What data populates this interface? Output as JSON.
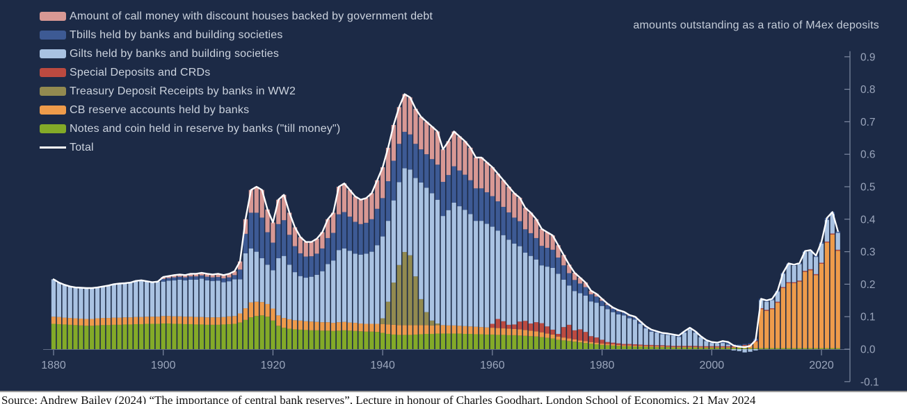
{
  "figure": {
    "annotation": "amounts outstanding as a ratio of M4ex deposits",
    "caption": "Source: Andrew Bailey (2024) “The importance of central bank reserves”, Lecture in honour of Charles Goodhart, London School of Economics, 21 May 2024",
    "colors": {
      "background": "#1c2a46",
      "legend_text": "#ccd3de",
      "annotation_text": "#c4ccd8",
      "axis_line": "#7e8aa2",
      "tick_text": "#9aa5bb",
      "total_line": "#ffffff"
    }
  },
  "chart_data": {
    "type": "bar",
    "stacked": true,
    "title": "",
    "xlabel": "",
    "ylabel": "",
    "grid": false,
    "legend_position": "top-left",
    "x_start_year": 1880,
    "x_end_year": 2023,
    "x_ticks": [
      1880,
      1900,
      1920,
      1940,
      1960,
      1980,
      2000,
      2020
    ],
    "y_ticks": [
      0.9,
      0.8,
      0.7,
      0.6,
      0.5,
      0.4,
      0.3,
      0.2,
      0.1,
      0.0,
      -0.1
    ],
    "ylim": [
      -0.1,
      0.9
    ],
    "total_line": {
      "name": "Total",
      "color": "#ffffff"
    },
    "legend_order_top_to_bottom": [
      6,
      5,
      4,
      3,
      2,
      1,
      0
    ],
    "series": [
      {
        "name": "Notes and coin held in reserve by banks (\"till money\")",
        "color": "#83aa28",
        "values": [
          0.078,
          0.077,
          0.076,
          0.075,
          0.074,
          0.073,
          0.072,
          0.072,
          0.073,
          0.074,
          0.074,
          0.075,
          0.075,
          0.076,
          0.076,
          0.077,
          0.077,
          0.078,
          0.078,
          0.078,
          0.079,
          0.079,
          0.078,
          0.078,
          0.077,
          0.077,
          0.076,
          0.076,
          0.075,
          0.075,
          0.075,
          0.076,
          0.077,
          0.078,
          0.082,
          0.09,
          0.098,
          0.102,
          0.104,
          0.1,
          0.088,
          0.072,
          0.066,
          0.063,
          0.061,
          0.06,
          0.059,
          0.058,
          0.058,
          0.057,
          0.057,
          0.056,
          0.057,
          0.058,
          0.057,
          0.056,
          0.055,
          0.054,
          0.054,
          0.053,
          0.05,
          0.047,
          0.045,
          0.044,
          0.044,
          0.044,
          0.045,
          0.046,
          0.047,
          0.047,
          0.048,
          0.048,
          0.048,
          0.048,
          0.048,
          0.047,
          0.047,
          0.046,
          0.046,
          0.045,
          0.045,
          0.044,
          0.044,
          0.043,
          0.043,
          0.042,
          0.041,
          0.04,
          0.039,
          0.037,
          0.035,
          0.033,
          0.029,
          0.027,
          0.025,
          0.023,
          0.021,
          0.019,
          0.017,
          0.015,
          0.013,
          0.012,
          0.011,
          0.01,
          0.009,
          0.009,
          0.008,
          0.008,
          0.007,
          0.007,
          0.006,
          0.006,
          0.006,
          0.005,
          0.005,
          0.005,
          0.005,
          0.005,
          0.004,
          0.004,
          0.004,
          0.004,
          0.004,
          0.004,
          0.004,
          0.004,
          0.003,
          0.003,
          0.003,
          0.003,
          0.003,
          0.003,
          0.003,
          0.003,
          0.003,
          0.003,
          0.003,
          0.003,
          0.003,
          0.003,
          0.003,
          0.003,
          0.003,
          0.003
        ]
      },
      {
        "name": "CB reserve accounts held by banks",
        "color": "#ee9b4b",
        "values": [
          0.022,
          0.022,
          0.021,
          0.021,
          0.021,
          0.021,
          0.021,
          0.021,
          0.022,
          0.022,
          0.022,
          0.022,
          0.022,
          0.022,
          0.022,
          0.022,
          0.022,
          0.022,
          0.022,
          0.022,
          0.023,
          0.023,
          0.023,
          0.023,
          0.023,
          0.023,
          0.023,
          0.023,
          0.023,
          0.023,
          0.023,
          0.023,
          0.024,
          0.024,
          0.028,
          0.036,
          0.046,
          0.044,
          0.041,
          0.039,
          0.037,
          0.032,
          0.03,
          0.029,
          0.028,
          0.028,
          0.027,
          0.027,
          0.026,
          0.026,
          0.026,
          0.025,
          0.026,
          0.026,
          0.025,
          0.025,
          0.024,
          0.024,
          0.024,
          0.025,
          0.027,
          0.029,
          0.03,
          0.03,
          0.03,
          0.03,
          0.029,
          0.028,
          0.027,
          0.026,
          0.026,
          0.026,
          0.025,
          0.025,
          0.024,
          0.024,
          0.023,
          0.023,
          0.022,
          0.022,
          0.021,
          0.021,
          0.02,
          0.02,
          0.019,
          0.019,
          0.018,
          0.017,
          0.016,
          0.015,
          0.013,
          0.012,
          0.01,
          0.009,
          0.008,
          0.007,
          0.006,
          0.006,
          0.005,
          0.005,
          0.004,
          0.004,
          0.004,
          0.003,
          0.003,
          0.003,
          0.003,
          0.003,
          0.003,
          0.003,
          0.003,
          0.003,
          0.002,
          0.002,
          0.002,
          0.002,
          0.002,
          0.002,
          0.002,
          0.002,
          0.002,
          0.002,
          0.002,
          0.002,
          0.002,
          0.002,
          0.007,
          0.009,
          0.02,
          0.12,
          0.115,
          0.12,
          0.14,
          0.185,
          0.2,
          0.2,
          0.205,
          0.235,
          0.24,
          0.225,
          0.26,
          0.325,
          0.35,
          0.3
        ]
      },
      {
        "name": "Treasury Deposit Receipts by banks in WW2",
        "color": "#928a50",
        "values": [
          0,
          0,
          0,
          0,
          0,
          0,
          0,
          0,
          0,
          0,
          0,
          0,
          0,
          0,
          0,
          0,
          0,
          0,
          0,
          0,
          0,
          0,
          0,
          0,
          0,
          0,
          0,
          0,
          0,
          0,
          0,
          0,
          0,
          0,
          0,
          0,
          0,
          0,
          0,
          0,
          0,
          0,
          0,
          0,
          0,
          0,
          0,
          0,
          0,
          0,
          0,
          0,
          0,
          0,
          0,
          0,
          0,
          0,
          0,
          0,
          0.018,
          0.07,
          0.13,
          0.185,
          0.225,
          0.215,
          0.15,
          0.08,
          0.04,
          0.015,
          0.005,
          0,
          0,
          0,
          0,
          0,
          0,
          0,
          0,
          0,
          0,
          0,
          0,
          0,
          0,
          0,
          0,
          0,
          0,
          0,
          0,
          0,
          0,
          0,
          0,
          0,
          0,
          0,
          0,
          0,
          0,
          0,
          0,
          0,
          0,
          0,
          0,
          0,
          0,
          0,
          0,
          0,
          0,
          0,
          0,
          0,
          0,
          0,
          0,
          0,
          0,
          0,
          0,
          0,
          0,
          0,
          0,
          0,
          0,
          0,
          0,
          0,
          0,
          0,
          0,
          0,
          0,
          0,
          0,
          0,
          0,
          0,
          0,
          0
        ]
      },
      {
        "name": "Special Deposits and CRDs",
        "color": "#bc4a40",
        "values": [
          0,
          0,
          0,
          0,
          0,
          0,
          0,
          0,
          0,
          0,
          0,
          0,
          0,
          0,
          0,
          0,
          0,
          0,
          0,
          0,
          0,
          0,
          0,
          0,
          0,
          0,
          0,
          0,
          0,
          0,
          0,
          0,
          0,
          0,
          0,
          0,
          0,
          0,
          0,
          0,
          0,
          0,
          0,
          0,
          0,
          0,
          0,
          0,
          0,
          0,
          0,
          0,
          0,
          0,
          0,
          0,
          0,
          0,
          0,
          0,
          0,
          0,
          0,
          0,
          0,
          0,
          0,
          0,
          0,
          0,
          0,
          0,
          0,
          0,
          0,
          0,
          0,
          0,
          0,
          0,
          0.012,
          0.028,
          0.022,
          0.012,
          0.014,
          0.024,
          0.028,
          0.022,
          0.028,
          0.028,
          0.022,
          0.015,
          0.008,
          0.032,
          0.042,
          0.028,
          0.034,
          0.028,
          0.018,
          0.016,
          0.012,
          0.006,
          0.005,
          0.005,
          0.004,
          0.004,
          0.004,
          0.003,
          0.003,
          0.003,
          0.003,
          0.003,
          0.003,
          0.003,
          0.003,
          0.003,
          0.003,
          0.003,
          0.003,
          0.003,
          0.003,
          0.003,
          0.003,
          0.003,
          0.003,
          0.003,
          0.003,
          0.003,
          0.003,
          0.003,
          0.003,
          0.003,
          0.003,
          0.003,
          0.003,
          0.003,
          0.003,
          0.003,
          0.003,
          0.003,
          0.003,
          0.003,
          0.003,
          0.003
        ]
      },
      {
        "name": "Gilts held by banks and building societies",
        "color": "#a9c2e2",
        "values": [
          0.115,
          0.106,
          0.101,
          0.097,
          0.095,
          0.095,
          0.095,
          0.095,
          0.095,
          0.097,
          0.1,
          0.103,
          0.105,
          0.105,
          0.107,
          0.111,
          0.113,
          0.109,
          0.106,
          0.108,
          0.106,
          0.109,
          0.111,
          0.113,
          0.112,
          0.114,
          0.115,
          0.118,
          0.114,
          0.112,
          0.113,
          0.107,
          0.108,
          0.113,
          0.105,
          0.169,
          0.166,
          0.154,
          0.135,
          0.121,
          0.118,
          0.176,
          0.191,
          0.168,
          0.148,
          0.137,
          0.134,
          0.138,
          0.145,
          0.157,
          0.179,
          0.192,
          0.222,
          0.226,
          0.221,
          0.213,
          0.212,
          0.216,
          0.222,
          0.242,
          0.252,
          0.249,
          0.253,
          0.255,
          0.258,
          0.264,
          0.303,
          0.359,
          0.383,
          0.392,
          0.381,
          0.336,
          0.355,
          0.378,
          0.368,
          0.358,
          0.346,
          0.326,
          0.327,
          0.319,
          0.299,
          0.272,
          0.265,
          0.262,
          0.249,
          0.232,
          0.21,
          0.208,
          0.193,
          0.178,
          0.184,
          0.19,
          0.185,
          0.146,
          0.121,
          0.121,
          0.111,
          0.112,
          0.107,
          0.107,
          0.104,
          0.101,
          0.094,
          0.089,
          0.088,
          0.079,
          0.076,
          0.064,
          0.051,
          0.041,
          0.039,
          0.034,
          0.033,
          0.032,
          0.028,
          0.041,
          0.051,
          0.041,
          0.028,
          0.016,
          0.01,
          0.008,
          0.01,
          0.005,
          -0.004,
          -0.006,
          -0.01,
          -0.008,
          -0.004,
          0.025,
          0.025,
          0.025,
          0.031,
          0.041,
          0.055,
          0.051,
          0.051,
          0.058,
          0.055,
          0.053,
          0.059,
          0.067,
          0.06,
          0.052
        ]
      },
      {
        "name": "Tbills held by banks and building societies",
        "color": "#3d5a94",
        "values": [
          0,
          0,
          0,
          0,
          0,
          0,
          0,
          0,
          0,
          0,
          0,
          0,
          0,
          0,
          0,
          0,
          0,
          0,
          0,
          0,
          0.008,
          0.008,
          0.009,
          0.009,
          0.009,
          0.01,
          0.01,
          0.01,
          0.011,
          0.011,
          0.011,
          0.012,
          0.012,
          0.013,
          0.03,
          0.06,
          0.11,
          0.12,
          0.125,
          0.1,
          0.085,
          0.105,
          0.11,
          0.092,
          0.08,
          0.07,
          0.065,
          0.063,
          0.065,
          0.07,
          0.08,
          0.085,
          0.11,
          0.112,
          0.105,
          0.098,
          0.094,
          0.095,
          0.1,
          0.112,
          0.118,
          0.122,
          0.122,
          0.118,
          0.112,
          0.108,
          0.105,
          0.102,
          0.103,
          0.105,
          0.108,
          0.105,
          0.108,
          0.112,
          0.11,
          0.108,
          0.104,
          0.1,
          0.1,
          0.097,
          0.094,
          0.09,
          0.087,
          0.084,
          0.08,
          0.077,
          0.072,
          0.07,
          0.066,
          0.06,
          0.058,
          0.056,
          0.05,
          0.044,
          0.038,
          0.034,
          0.03,
          0.026,
          0.022,
          0.019,
          0.016,
          0.013,
          0.011,
          0.01,
          0.009,
          0.008,
          0.007,
          0.006,
          0.005,
          0.005,
          0.004,
          0.004,
          0.004,
          0.003,
          0.004,
          0.004,
          0.005,
          0.004,
          0.003,
          0.003,
          0.003,
          0.003,
          0.006,
          0.008,
          0.006,
          0.005,
          0.003,
          0.003,
          0.006,
          0.004,
          0.004,
          0.004,
          0.003,
          0.003,
          0.003,
          0.003,
          0.003,
          0.003,
          0.004,
          0.004,
          0.005,
          0.006,
          0.006,
          0.005
        ]
      },
      {
        "name": "Amount of call money with discount houses backed by government debt",
        "color": "#d89894",
        "values": [
          0,
          0,
          0,
          0,
          0,
          0,
          0,
          0,
          0,
          0,
          0,
          0,
          0,
          0,
          0,
          0,
          0,
          0,
          0,
          0,
          0.006,
          0.006,
          0.007,
          0.007,
          0.007,
          0.008,
          0.008,
          0.008,
          0.009,
          0.009,
          0.01,
          0.01,
          0.011,
          0.012,
          0.025,
          0.045,
          0.07,
          0.08,
          0.085,
          0.07,
          0.062,
          0.075,
          0.078,
          0.068,
          0.058,
          0.05,
          0.045,
          0.044,
          0.046,
          0.05,
          0.058,
          0.062,
          0.085,
          0.088,
          0.082,
          0.078,
          0.075,
          0.076,
          0.08,
          0.088,
          0.095,
          0.103,
          0.11,
          0.113,
          0.116,
          0.114,
          0.108,
          0.1,
          0.1,
          0.1,
          0.102,
          0.1,
          0.104,
          0.107,
          0.105,
          0.103,
          0.1,
          0.095,
          0.095,
          0.092,
          0.089,
          0.085,
          0.082,
          0.079,
          0.075,
          0.072,
          0.066,
          0.063,
          0.058,
          0.052,
          0.048,
          0.044,
          0.038,
          0.032,
          0.026,
          0.022,
          0.018,
          0.014,
          0.011,
          0.008,
          0.006,
          0.004,
          0.003,
          0.003,
          0.002,
          0.002,
          0.002,
          0.001,
          0.001,
          0.001,
          0,
          0,
          0,
          0,
          0,
          0,
          0,
          0,
          0,
          0,
          0,
          0,
          0,
          0,
          0,
          0,
          0,
          0,
          0,
          0,
          0,
          0,
          0,
          0,
          0,
          0,
          0,
          0,
          0,
          0,
          0,
          0,
          0,
          0
        ]
      }
    ]
  }
}
